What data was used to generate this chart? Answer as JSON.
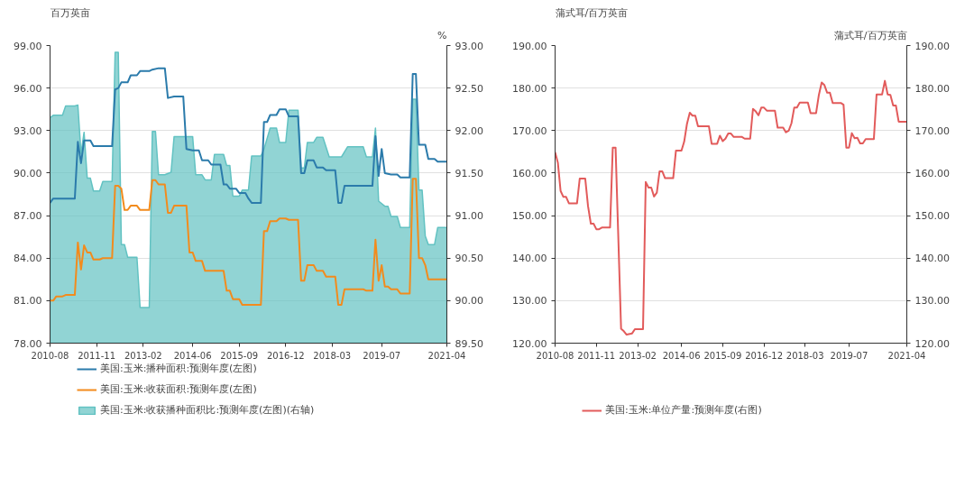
{
  "chart_data": [
    {
      "type": "line",
      "ylabel": "百万英亩",
      "y2label": "%",
      "grid": "y",
      "legend": "bottom",
      "xlim": [
        "2010-08",
        "2021-04"
      ],
      "xticks": [
        "2010-08",
        "2011-11",
        "2013-02",
        "2014-06",
        "2015-09",
        "2016-12",
        "2018-03",
        "2019-07",
        "2021-04"
      ],
      "ylim": [
        78,
        99
      ],
      "yticks": [
        {
          "value": 78,
          "label": "78.00"
        },
        {
          "value": 81,
          "label": "81.00"
        },
        {
          "value": 84,
          "label": "84.00"
        },
        {
          "value": 87,
          "label": "87.00"
        },
        {
          "value": 90,
          "label": "90.00"
        },
        {
          "value": 93,
          "label": "93.00"
        },
        {
          "value": 96,
          "label": "96.00"
        },
        {
          "value": 99,
          "label": "99.00"
        }
      ],
      "y2lim": [
        89.5,
        93
      ],
      "y2ticks": [
        {
          "value": 89.5,
          "label": "89.50"
        },
        {
          "value": 90,
          "label": "90.00"
        },
        {
          "value": 90.5,
          "label": "90.50"
        },
        {
          "value": 91,
          "label": "91.00"
        },
        {
          "value": 91.5,
          "label": "91.50"
        },
        {
          "value": 92,
          "label": "92.00"
        },
        {
          "value": 92.5,
          "label": "92.50"
        },
        {
          "value": 93,
          "label": "93.00"
        }
      ],
      "series": [
        {
          "name": "美国:玉米:播种面积:预测年度(左图)",
          "color": "#2b7bab",
          "x": [
            "2010-08",
            "2010-09",
            "2011-04",
            "2011-05",
            "2011-06",
            "2011-07",
            "2011-09",
            "2011-10",
            "2012-04",
            "2012-05",
            "2012-06",
            "2012-07",
            "2012-09",
            "2012-10",
            "2012-12",
            "2013-01",
            "2013-04",
            "2013-05",
            "2013-07",
            "2013-09",
            "2013-10",
            "2013-12",
            "2014-03",
            "2014-04",
            "2014-06",
            "2014-08",
            "2014-09",
            "2014-11",
            "2014-12",
            "2015-03",
            "2015-04",
            "2015-05",
            "2015-06",
            "2015-08",
            "2015-09",
            "2015-11",
            "2015-12",
            "2016-01",
            "2016-04",
            "2016-05",
            "2016-06",
            "2016-07",
            "2016-09",
            "2016-10",
            "2016-12",
            "2017-01",
            "2017-04",
            "2017-05",
            "2017-06",
            "2017-07",
            "2017-09",
            "2017-10",
            "2017-12",
            "2018-01",
            "2018-04",
            "2018-05",
            "2018-06",
            "2018-07",
            "2019-04",
            "2019-05",
            "2019-06",
            "2019-07",
            "2019-08",
            "2019-10",
            "2019-12",
            "2020-01",
            "2020-04",
            "2020-05",
            "2020-06",
            "2020-07",
            "2020-09",
            "2020-10",
            "2020-12",
            "2021-01",
            "2021-04"
          ],
          "values": [
            87.9,
            88.2,
            88.2,
            92.2,
            90.7,
            92.3,
            92.3,
            91.9,
            91.9,
            95.9,
            96.0,
            96.4,
            96.4,
            96.9,
            96.9,
            97.2,
            97.2,
            97.3,
            97.4,
            97.4,
            95.3,
            95.4,
            95.4,
            91.7,
            91.6,
            91.6,
            90.9,
            90.9,
            90.6,
            90.6,
            89.2,
            89.2,
            88.9,
            88.9,
            88.6,
            88.6,
            88.2,
            87.9,
            87.9,
            93.6,
            93.6,
            94.1,
            94.1,
            94.5,
            94.5,
            94.0,
            94.0,
            90.0,
            90.0,
            90.9,
            90.9,
            90.4,
            90.4,
            90.2,
            90.2,
            87.9,
            87.9,
            89.1,
            89.1,
            92.6,
            89.8,
            91.7,
            90.0,
            89.9,
            89.9,
            89.7,
            89.7,
            97.0,
            97.0,
            92.0,
            92.0,
            91.0,
            91.0,
            90.8,
            90.8
          ]
        },
        {
          "name": "美国:玉米:收获面积:预测年度(左图)",
          "color": "#f28b1d",
          "x": [
            "2010-08",
            "2010-09",
            "2010-10",
            "2010-12",
            "2011-01",
            "2011-04",
            "2011-05",
            "2011-06",
            "2011-07",
            "2011-08",
            "2011-09",
            "2011-10",
            "2011-12",
            "2012-01",
            "2012-04",
            "2012-05",
            "2012-06",
            "2012-07",
            "2012-08",
            "2012-09",
            "2012-10",
            "2012-12",
            "2013-01",
            "2013-04",
            "2013-05",
            "2013-06",
            "2013-07",
            "2013-09",
            "2013-10",
            "2013-11",
            "2013-12",
            "2014-04",
            "2014-05",
            "2014-06",
            "2014-07",
            "2014-09",
            "2014-10",
            "2015-04",
            "2015-05",
            "2015-06",
            "2015-07",
            "2015-09",
            "2015-10",
            "2016-04",
            "2016-05",
            "2016-06",
            "2016-07",
            "2016-09",
            "2016-10",
            "2016-12",
            "2017-01",
            "2017-04",
            "2017-05",
            "2017-06",
            "2017-07",
            "2017-09",
            "2017-10",
            "2017-12",
            "2018-01",
            "2018-04",
            "2018-05",
            "2018-06",
            "2018-07",
            "2019-01",
            "2019-02",
            "2019-04",
            "2019-05",
            "2019-06",
            "2019-07",
            "2019-08",
            "2019-09",
            "2019-10",
            "2019-12",
            "2020-01",
            "2020-04",
            "2020-05",
            "2020-06",
            "2020-07",
            "2020-08",
            "2020-09",
            "2020-10",
            "2021-04"
          ],
          "values": [
            81.0,
            81.0,
            81.3,
            81.3,
            81.4,
            81.4,
            85.1,
            83.2,
            84.9,
            84.4,
            84.4,
            83.9,
            83.9,
            84.0,
            84.0,
            89.1,
            89.1,
            88.9,
            87.4,
            87.4,
            87.7,
            87.7,
            87.4,
            87.4,
            89.5,
            89.5,
            89.2,
            89.2,
            87.2,
            87.2,
            87.7,
            87.7,
            84.4,
            84.4,
            83.8,
            83.8,
            83.1,
            83.1,
            81.7,
            81.7,
            81.1,
            81.1,
            80.7,
            80.7,
            85.9,
            85.9,
            86.6,
            86.6,
            86.8,
            86.8,
            86.7,
            86.7,
            82.4,
            82.4,
            83.5,
            83.5,
            83.1,
            83.1,
            82.7,
            82.7,
            80.7,
            80.7,
            81.8,
            81.8,
            81.7,
            81.7,
            85.3,
            82.4,
            83.5,
            82.0,
            82.0,
            81.8,
            81.8,
            81.5,
            81.5,
            89.6,
            89.6,
            84.0,
            84.0,
            83.5,
            82.5,
            82.5
          ]
        },
        {
          "name": "美国:玉米:收获播种面积比:预测年度(左图)(右轴)",
          "type": "area",
          "axis": "y2",
          "color": "#62c2c2",
          "x": [
            "2010-08",
            "2010-09",
            "2010-12",
            "2011-01",
            "2011-04",
            "2011-05",
            "2011-06",
            "2011-07",
            "2011-08",
            "2011-09",
            "2011-10",
            "2011-12",
            "2012-01",
            "2012-04",
            "2012-05",
            "2012-06",
            "2012-07",
            "2012-08",
            "2012-09",
            "2012-12",
            "2013-01",
            "2013-04",
            "2013-05",
            "2013-06",
            "2013-07",
            "2013-09",
            "2013-11",
            "2013-12",
            "2014-06",
            "2014-07",
            "2014-09",
            "2014-10",
            "2014-12",
            "2015-01",
            "2015-04",
            "2015-05",
            "2015-06",
            "2015-07",
            "2015-09",
            "2015-10",
            "2015-12",
            "2016-01",
            "2016-04",
            "2016-05",
            "2016-07",
            "2016-09",
            "2016-10",
            "2016-12",
            "2017-01",
            "2017-04",
            "2017-05",
            "2017-06",
            "2017-07",
            "2017-09",
            "2017-10",
            "2017-12",
            "2018-02",
            "2018-06",
            "2018-08",
            "2019-01",
            "2019-02",
            "2019-04",
            "2019-05",
            "2019-06",
            "2019-08",
            "2019-09",
            "2019-10",
            "2019-12",
            "2020-01",
            "2020-04",
            "2020-05",
            "2020-06",
            "2020-07",
            "2020-08",
            "2020-09",
            "2020-10",
            "2020-12",
            "2021-01",
            "2021-04"
          ],
          "values": [
            92.15,
            92.18,
            92.18,
            92.29,
            92.29,
            92.3,
            91.73,
            91.98,
            91.44,
            91.44,
            91.29,
            91.29,
            91.4,
            91.4,
            92.92,
            92.92,
            90.66,
            90.66,
            90.51,
            90.51,
            89.92,
            89.92,
            91.99,
            91.99,
            91.48,
            91.48,
            91.51,
            91.93,
            91.93,
            91.48,
            91.48,
            91.42,
            91.42,
            91.72,
            91.72,
            91.59,
            91.59,
            91.23,
            91.23,
            91.3,
            91.3,
            91.7,
            91.7,
            91.78,
            92.03,
            92.03,
            91.86,
            91.86,
            92.24,
            92.24,
            91.56,
            91.56,
            91.86,
            91.86,
            91.92,
            91.92,
            91.69,
            91.69,
            91.81,
            91.81,
            91.69,
            91.69,
            92.03,
            91.17,
            91.11,
            91.11,
            90.99,
            90.99,
            90.86,
            90.86,
            92.37,
            92.37,
            91.3,
            91.3,
            90.76,
            90.66,
            90.66,
            90.86,
            90.86
          ]
        }
      ]
    },
    {
      "type": "line",
      "ylabel": "蒲式耳/百万英亩",
      "y2label": "蒲式耳/百万英亩",
      "grid": "y",
      "legend": "bottom",
      "xlim": [
        "2010-08",
        "2021-04"
      ],
      "xticks": [
        "2010-08",
        "2011-11",
        "2013-02",
        "2014-06",
        "2015-09",
        "2016-12",
        "2018-03",
        "2019-07",
        "2021-04"
      ],
      "ylim": [
        120,
        190
      ],
      "yticks": [
        {
          "value": 120,
          "label": "120.00"
        },
        {
          "value": 130,
          "label": "130.00"
        },
        {
          "value": 140,
          "label": "140.00"
        },
        {
          "value": 150,
          "label": "150.00"
        },
        {
          "value": 160,
          "label": "160.00"
        },
        {
          "value": 170,
          "label": "170.00"
        },
        {
          "value": 180,
          "label": "180.00"
        },
        {
          "value": 190,
          "label": "190.00"
        }
      ],
      "y2lim": [
        120,
        190
      ],
      "y2ticks": [
        {
          "value": 120,
          "label": "120.00"
        },
        {
          "value": 130,
          "label": "130.00"
        },
        {
          "value": 140,
          "label": "140.00"
        },
        {
          "value": 150,
          "label": "150.00"
        },
        {
          "value": 160,
          "label": "160.00"
        },
        {
          "value": 170,
          "label": "170.00"
        },
        {
          "value": 180,
          "label": "180.00"
        },
        {
          "value": 190,
          "label": "190.00"
        }
      ],
      "series": [
        {
          "name": "美国:玉米:单位产量:预测年度(右图)",
          "color": "#e25b5b",
          "x": [
            "2010-08",
            "2010-09",
            "2010-10",
            "2010-11",
            "2010-12",
            "2011-01",
            "2011-04",
            "2011-05",
            "2011-07",
            "2011-08",
            "2011-09",
            "2011-10",
            "2011-11",
            "2011-12",
            "2012-01",
            "2012-04",
            "2012-05",
            "2012-06",
            "2012-08",
            "2012-09",
            "2012-10",
            "2012-12",
            "2013-01",
            "2013-04",
            "2013-05",
            "2013-06",
            "2013-07",
            "2013-08",
            "2013-09",
            "2013-10",
            "2013-11",
            "2013-12",
            "2014-03",
            "2014-04",
            "2014-06",
            "2014-07",
            "2014-08",
            "2014-09",
            "2014-10",
            "2014-11",
            "2014-12",
            "2015-04",
            "2015-05",
            "2015-07",
            "2015-08",
            "2015-09",
            "2015-10",
            "2015-11",
            "2015-12",
            "2016-01",
            "2016-04",
            "2016-05",
            "2016-07",
            "2016-08",
            "2016-09",
            "2016-10",
            "2016-11",
            "2016-12",
            "2017-01",
            "2017-04",
            "2017-05",
            "2017-07",
            "2017-08",
            "2017-09",
            "2017-10",
            "2017-11",
            "2017-12",
            "2018-01",
            "2018-04",
            "2018-05",
            "2018-07",
            "2018-08",
            "2018-09",
            "2018-10",
            "2018-11",
            "2018-12",
            "2019-01",
            "2019-04",
            "2019-05",
            "2019-06",
            "2019-07",
            "2019-08",
            "2019-09",
            "2019-10",
            "2019-11",
            "2019-12",
            "2020-01",
            "2020-04",
            "2020-05",
            "2020-07",
            "2020-08",
            "2020-09",
            "2020-10",
            "2020-11",
            "2020-12",
            "2021-01",
            "2021-04"
          ],
          "values": [
            164.9,
            162.4,
            155.8,
            154.4,
            154.4,
            152.9,
            152.9,
            158.7,
            158.7,
            152.2,
            148.1,
            148.1,
            146.8,
            146.8,
            147.2,
            147.2,
            166.0,
            166.0,
            123.4,
            122.8,
            122.0,
            122.3,
            123.3,
            123.3,
            157.9,
            156.6,
            156.6,
            154.5,
            155.4,
            160.4,
            160.4,
            158.8,
            158.8,
            165.3,
            165.3,
            167.4,
            171.6,
            174.2,
            173.5,
            173.5,
            171.0,
            171.0,
            166.9,
            166.9,
            168.8,
            167.5,
            168.1,
            169.3,
            169.3,
            168.5,
            168.5,
            168.1,
            168.1,
            175.1,
            174.5,
            173.6,
            175.4,
            175.4,
            174.7,
            174.7,
            170.7,
            170.7,
            169.6,
            170.0,
            171.7,
            175.4,
            175.4,
            176.6,
            176.6,
            174.1,
            174.1,
            178.4,
            181.3,
            180.7,
            178.9,
            178.9,
            176.5,
            176.5,
            176.1,
            166.0,
            166.0,
            169.4,
            168.2,
            168.3,
            167.0,
            167.0,
            168.0,
            168.0,
            178.5,
            178.5,
            181.7,
            178.5,
            178.4,
            175.9,
            175.9,
            172.1,
            172.1
          ]
        }
      ]
    }
  ]
}
